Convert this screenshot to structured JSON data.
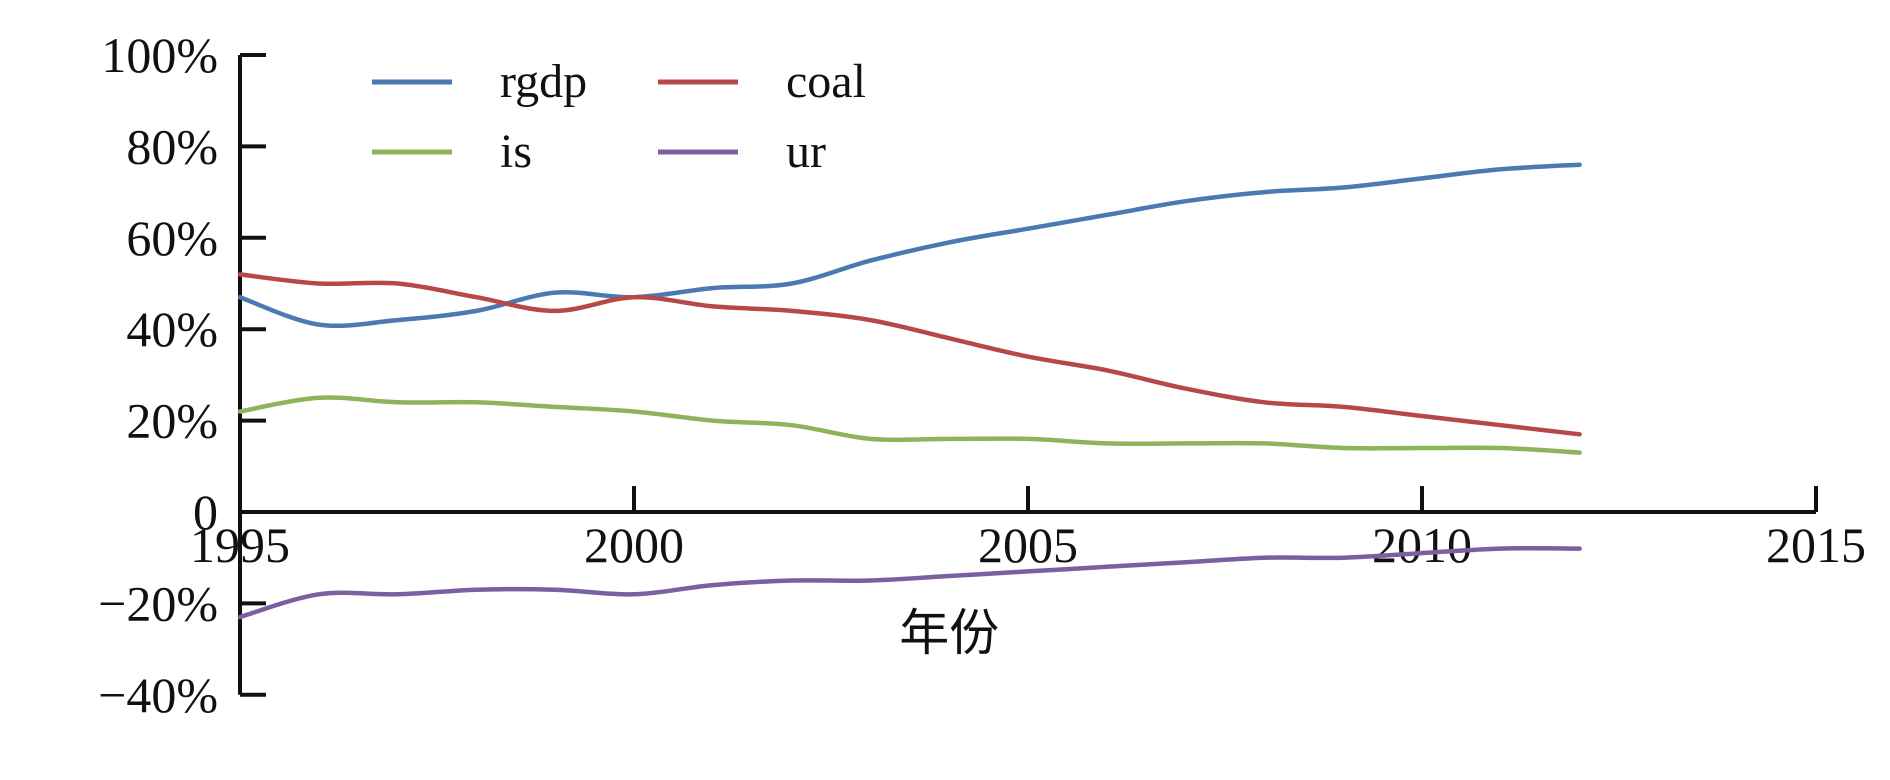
{
  "chart_data": {
    "type": "line",
    "title": "",
    "xlabel": "年份",
    "ylabel": "",
    "xlim": [
      1995,
      2015
    ],
    "ylim": [
      -0.4,
      1.0
    ],
    "x_ticks": [
      1995,
      2000,
      2005,
      2010,
      2015
    ],
    "y_ticks": [
      {
        "value": 1.0,
        "label": "100%"
      },
      {
        "value": 0.8,
        "label": "80%"
      },
      {
        "value": 0.6,
        "label": "60%"
      },
      {
        "value": 0.4,
        "label": "40%"
      },
      {
        "value": 0.2,
        "label": "20%"
      },
      {
        "value": 0.0,
        "label": "0"
      },
      {
        "value": -0.2,
        "label": "−20%"
      },
      {
        "value": -0.4,
        "label": "−40%"
      }
    ],
    "grid": false,
    "legend_position": "top-left",
    "series": [
      {
        "name": "rgdp",
        "color": "#4a7ab0",
        "x": [
          1995,
          1996,
          1997,
          1998,
          1999,
          2000,
          2001,
          2002,
          2003,
          2004,
          2005,
          2006,
          2007,
          2008,
          2009,
          2010,
          2011,
          2012
        ],
        "y": [
          0.47,
          0.41,
          0.42,
          0.44,
          0.48,
          0.47,
          0.49,
          0.5,
          0.55,
          0.59,
          0.62,
          0.65,
          0.68,
          0.7,
          0.71,
          0.73,
          0.75,
          0.76
        ]
      },
      {
        "name": "coal",
        "color": "#b5494a",
        "x": [
          1995,
          1996,
          1997,
          1998,
          1999,
          2000,
          2001,
          2002,
          2003,
          2004,
          2005,
          2006,
          2007,
          2008,
          2009,
          2010,
          2011,
          2012
        ],
        "y": [
          0.52,
          0.5,
          0.5,
          0.47,
          0.44,
          0.47,
          0.45,
          0.44,
          0.42,
          0.38,
          0.34,
          0.31,
          0.27,
          0.24,
          0.23,
          0.21,
          0.19,
          0.17
        ]
      },
      {
        "name": "is",
        "color": "#8fb35a",
        "x": [
          1995,
          1996,
          1997,
          1998,
          1999,
          2000,
          2001,
          2002,
          2003,
          2004,
          2005,
          2006,
          2007,
          2008,
          2009,
          2010,
          2011,
          2012
        ],
        "y": [
          0.22,
          0.25,
          0.24,
          0.24,
          0.23,
          0.22,
          0.2,
          0.19,
          0.16,
          0.16,
          0.16,
          0.15,
          0.15,
          0.15,
          0.14,
          0.14,
          0.14,
          0.13
        ]
      },
      {
        "name": "ur",
        "color": "#7a60a0",
        "x": [
          1995,
          1996,
          1997,
          1998,
          1999,
          2000,
          2001,
          2002,
          2003,
          2004,
          2005,
          2006,
          2007,
          2008,
          2009,
          2010,
          2011,
          2012
        ],
        "y": [
          -0.23,
          -0.18,
          -0.18,
          -0.17,
          -0.17,
          -0.18,
          -0.16,
          -0.15,
          -0.15,
          -0.14,
          -0.13,
          -0.12,
          -0.11,
          -0.1,
          -0.1,
          -0.09,
          -0.08,
          -0.08
        ]
      }
    ]
  }
}
